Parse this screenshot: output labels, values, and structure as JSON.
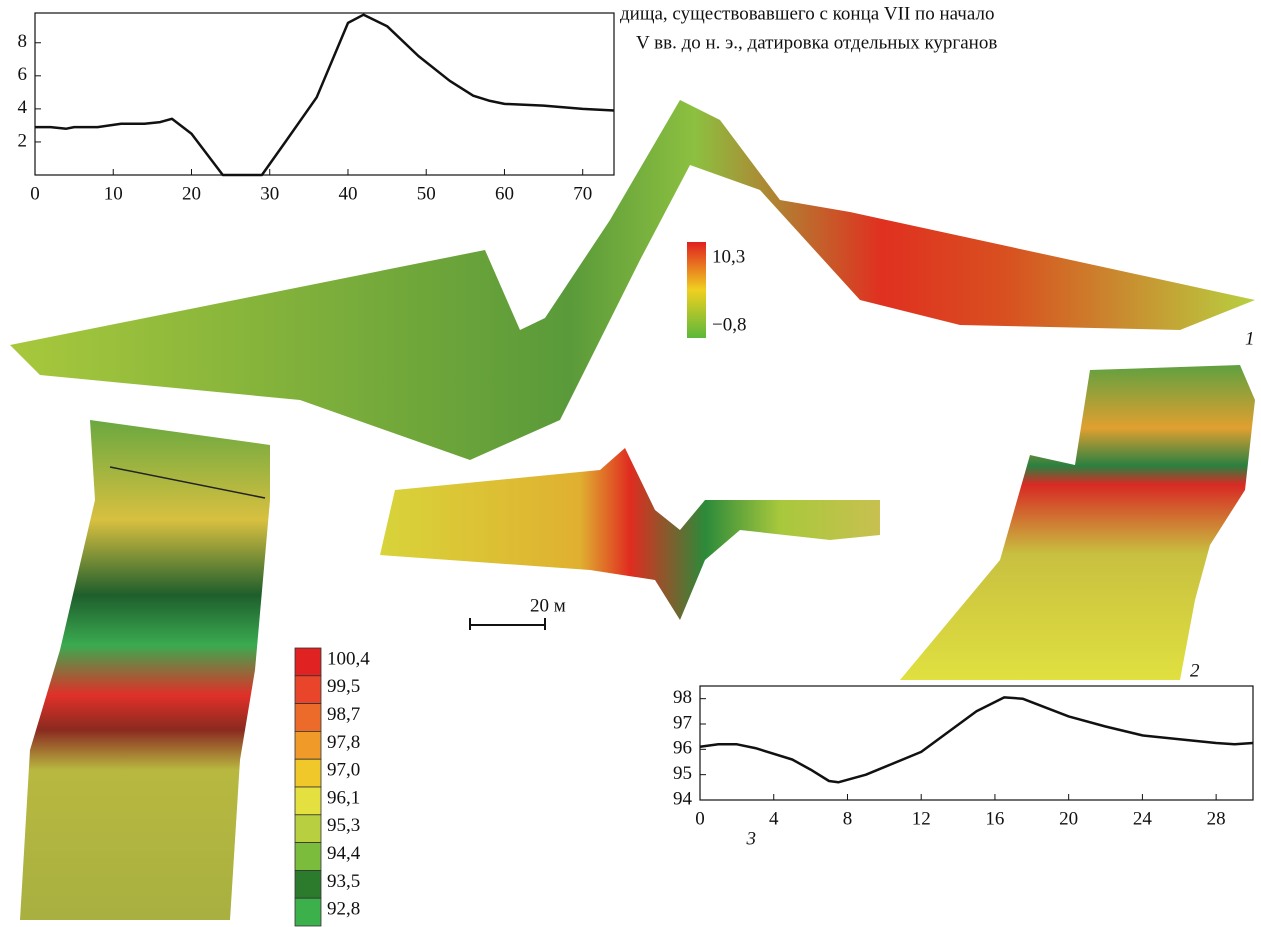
{
  "text": [
    "дища, существовавшего с конца VII по начало",
    "V вв. до н. э., датировка отдельных курганов"
  ],
  "chart_data": [
    {
      "type": "line",
      "x": [
        0,
        2,
        4,
        5,
        8,
        11,
        14,
        16,
        17.5,
        20,
        24,
        29,
        32,
        36,
        40,
        42,
        45,
        49,
        53,
        56,
        58,
        60,
        65,
        70,
        74
      ],
      "values": [
        2.9,
        2.9,
        2.8,
        2.9,
        2.9,
        3.1,
        3.1,
        3.2,
        3.4,
        2.5,
        0,
        0,
        2,
        4.7,
        9.2,
        9.7,
        9,
        7.2,
        5.7,
        4.8,
        4.5,
        4.3,
        4.2,
        4,
        3.9
      ],
      "color": "#111111",
      "xlim": [
        0,
        74
      ],
      "ylim": [
        0,
        9.8
      ],
      "xticks": [
        0,
        10,
        20,
        30,
        40,
        50,
        60,
        70
      ],
      "yticks": [
        2,
        4,
        6,
        8
      ]
    },
    {
      "type": "line",
      "x": [
        0,
        1,
        2,
        3,
        5,
        6,
        7,
        7.5,
        9,
        12,
        15,
        16.5,
        17.5,
        20,
        22,
        24,
        26,
        28,
        29,
        30
      ],
      "values": [
        96.1,
        96.2,
        96.2,
        96.05,
        95.6,
        95.2,
        94.75,
        94.7,
        95.0,
        95.9,
        97.5,
        98.05,
        98.0,
        97.3,
        96.9,
        96.55,
        96.4,
        96.25,
        96.2,
        96.25
      ],
      "color": "#111111",
      "xlim": [
        0,
        30
      ],
      "ylim": [
        94,
        98.5
      ],
      "xticks": [
        0,
        4,
        8,
        12,
        16,
        20,
        24,
        28
      ],
      "yticks": [
        94,
        95,
        96,
        97,
        98
      ],
      "label": "3"
    }
  ],
  "legend_1": {
    "labels": [
      "10,3",
      "−0,8"
    ],
    "colors": [
      "#e02020",
      "#f0d020",
      "#5cb83a"
    ]
  },
  "legend_2": {
    "labels": [
      "100,4",
      "99,5",
      "98,7",
      "97,8",
      "97,0",
      "96,1",
      "95,3",
      "94,4",
      "93,5",
      "92,8"
    ],
    "colors": [
      "#e02222",
      "#e8452a",
      "#ec6a2a",
      "#f09a2a",
      "#f0c82a",
      "#e4e040",
      "#b8d040",
      "#7cbc3c",
      "#2c7a2c",
      "#3cb04a"
    ]
  },
  "panel_labels": [
    "1",
    "2"
  ],
  "scale_bar": "20 м"
}
